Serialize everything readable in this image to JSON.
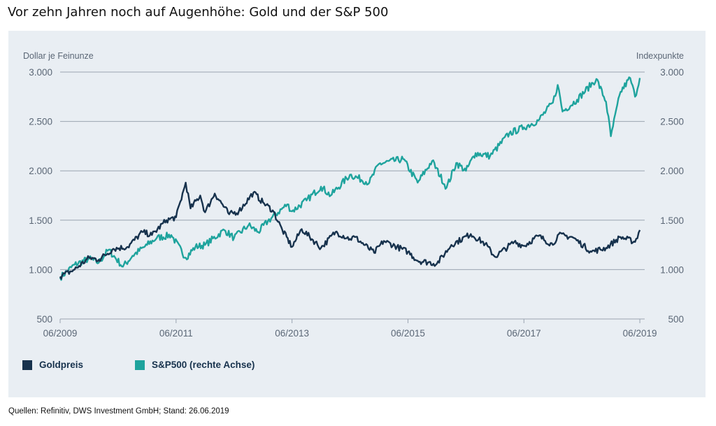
{
  "title": "Vor zehn Jahren noch auf Augenhöhe: Gold und der S&P 500",
  "source": "Quellen: Refinitiv, DWS Investment GmbH; Stand: 26.06.2019",
  "colors": {
    "panel_background": "#e9eef3",
    "gridline": "#9aa4b1",
    "tick_text": "#5b6776",
    "gold_series": "#17324d",
    "sp500_series": "#1ea39d"
  },
  "chart_data": {
    "type": "line",
    "title": "Vor zehn Jahren noch auf Augenhöhe: Gold und der S&P 500",
    "y_left_label": "Dollar je Feinunze",
    "y_right_label": "Indexpunkte",
    "ylim": [
      500,
      3000
    ],
    "y_ticks": [
      500,
      1000,
      1500,
      2000,
      2500,
      3000
    ],
    "y_tick_labels": [
      "500",
      "1.000",
      "1.500",
      "2.000",
      "2.500",
      "3.000"
    ],
    "y_tick_labels_right": [
      "500",
      "1.000",
      "1.500",
      "2.000",
      "2.500",
      "3.000"
    ],
    "xlim": [
      "2009-06",
      "2019-07"
    ],
    "x_ticks": [
      "2009-06",
      "2011-06",
      "2013-06",
      "2015-06",
      "2017-06",
      "2019-06"
    ],
    "x_tick_labels": [
      "06/2009",
      "06/2011",
      "06/2013",
      "06/2015",
      "06/2017",
      "06/2019"
    ],
    "grid": "horizontal",
    "legend": "bottom-left",
    "series": [
      {
        "name": "Goldpreis",
        "axis": "left",
        "color": "#17324d",
        "points": [
          [
            "2009-06",
            930
          ],
          [
            "2009-09",
            1000
          ],
          [
            "2009-12",
            1120
          ],
          [
            "2010-02",
            1100
          ],
          [
            "2010-05",
            1210
          ],
          [
            "2010-08",
            1230
          ],
          [
            "2010-11",
            1380
          ],
          [
            "2011-01",
            1350
          ],
          [
            "2011-04",
            1500
          ],
          [
            "2011-06",
            1530
          ],
          [
            "2011-08",
            1880
          ],
          [
            "2011-09",
            1620
          ],
          [
            "2011-11",
            1750
          ],
          [
            "2011-12",
            1580
          ],
          [
            "2012-02",
            1770
          ],
          [
            "2012-05",
            1560
          ],
          [
            "2012-07",
            1590
          ],
          [
            "2012-10",
            1780
          ],
          [
            "2012-12",
            1680
          ],
          [
            "2013-02",
            1600
          ],
          [
            "2013-04",
            1400
          ],
          [
            "2013-06",
            1230
          ],
          [
            "2013-08",
            1410
          ],
          [
            "2013-12",
            1220
          ],
          [
            "2014-03",
            1380
          ],
          [
            "2014-06",
            1310
          ],
          [
            "2014-07",
            1330
          ],
          [
            "2014-11",
            1170
          ],
          [
            "2015-01",
            1290
          ],
          [
            "2015-06",
            1180
          ],
          [
            "2015-08",
            1090
          ],
          [
            "2015-12",
            1060
          ],
          [
            "2016-03",
            1250
          ],
          [
            "2016-07",
            1360
          ],
          [
            "2016-10",
            1260
          ],
          [
            "2016-12",
            1130
          ],
          [
            "2017-04",
            1280
          ],
          [
            "2017-06",
            1240
          ],
          [
            "2017-09",
            1340
          ],
          [
            "2017-12",
            1250
          ],
          [
            "2018-01",
            1350
          ],
          [
            "2018-04",
            1330
          ],
          [
            "2018-08",
            1180
          ],
          [
            "2018-11",
            1220
          ],
          [
            "2019-02",
            1330
          ],
          [
            "2019-05",
            1280
          ],
          [
            "2019-06",
            1400
          ]
        ]
      },
      {
        "name": "S&P500 (rechte Achse)",
        "axis": "right",
        "color": "#1ea39d",
        "points": [
          [
            "2009-06",
            920
          ],
          [
            "2009-09",
            1050
          ],
          [
            "2009-12",
            1110
          ],
          [
            "2010-02",
            1070
          ],
          [
            "2010-04",
            1200
          ],
          [
            "2010-07",
            1030
          ],
          [
            "2010-09",
            1140
          ],
          [
            "2010-12",
            1250
          ],
          [
            "2011-02",
            1320
          ],
          [
            "2011-05",
            1350
          ],
          [
            "2011-08",
            1120
          ],
          [
            "2011-10",
            1230
          ],
          [
            "2011-12",
            1250
          ],
          [
            "2012-04",
            1400
          ],
          [
            "2012-06",
            1320
          ],
          [
            "2012-09",
            1450
          ],
          [
            "2012-11",
            1380
          ],
          [
            "2013-01",
            1490
          ],
          [
            "2013-05",
            1660
          ],
          [
            "2013-06",
            1590
          ],
          [
            "2013-09",
            1700
          ],
          [
            "2013-12",
            1840
          ],
          [
            "2014-02",
            1750
          ],
          [
            "2014-06",
            1960
          ],
          [
            "2014-10",
            1880
          ],
          [
            "2014-12",
            2070
          ],
          [
            "2015-05",
            2120
          ],
          [
            "2015-08",
            1880
          ],
          [
            "2015-11",
            2100
          ],
          [
            "2016-02",
            1830
          ],
          [
            "2016-04",
            2080
          ],
          [
            "2016-06",
            2000
          ],
          [
            "2016-08",
            2180
          ],
          [
            "2016-11",
            2150
          ],
          [
            "2017-03",
            2380
          ],
          [
            "2017-06",
            2440
          ],
          [
            "2017-09",
            2510
          ],
          [
            "2017-12",
            2690
          ],
          [
            "2018-01",
            2870
          ],
          [
            "2018-02",
            2600
          ],
          [
            "2018-05",
            2720
          ],
          [
            "2018-09",
            2930
          ],
          [
            "2018-11",
            2700
          ],
          [
            "2018-12",
            2350
          ],
          [
            "2019-02",
            2800
          ],
          [
            "2019-04",
            2940
          ],
          [
            "2019-05",
            2750
          ],
          [
            "2019-06",
            2940
          ]
        ]
      }
    ]
  }
}
